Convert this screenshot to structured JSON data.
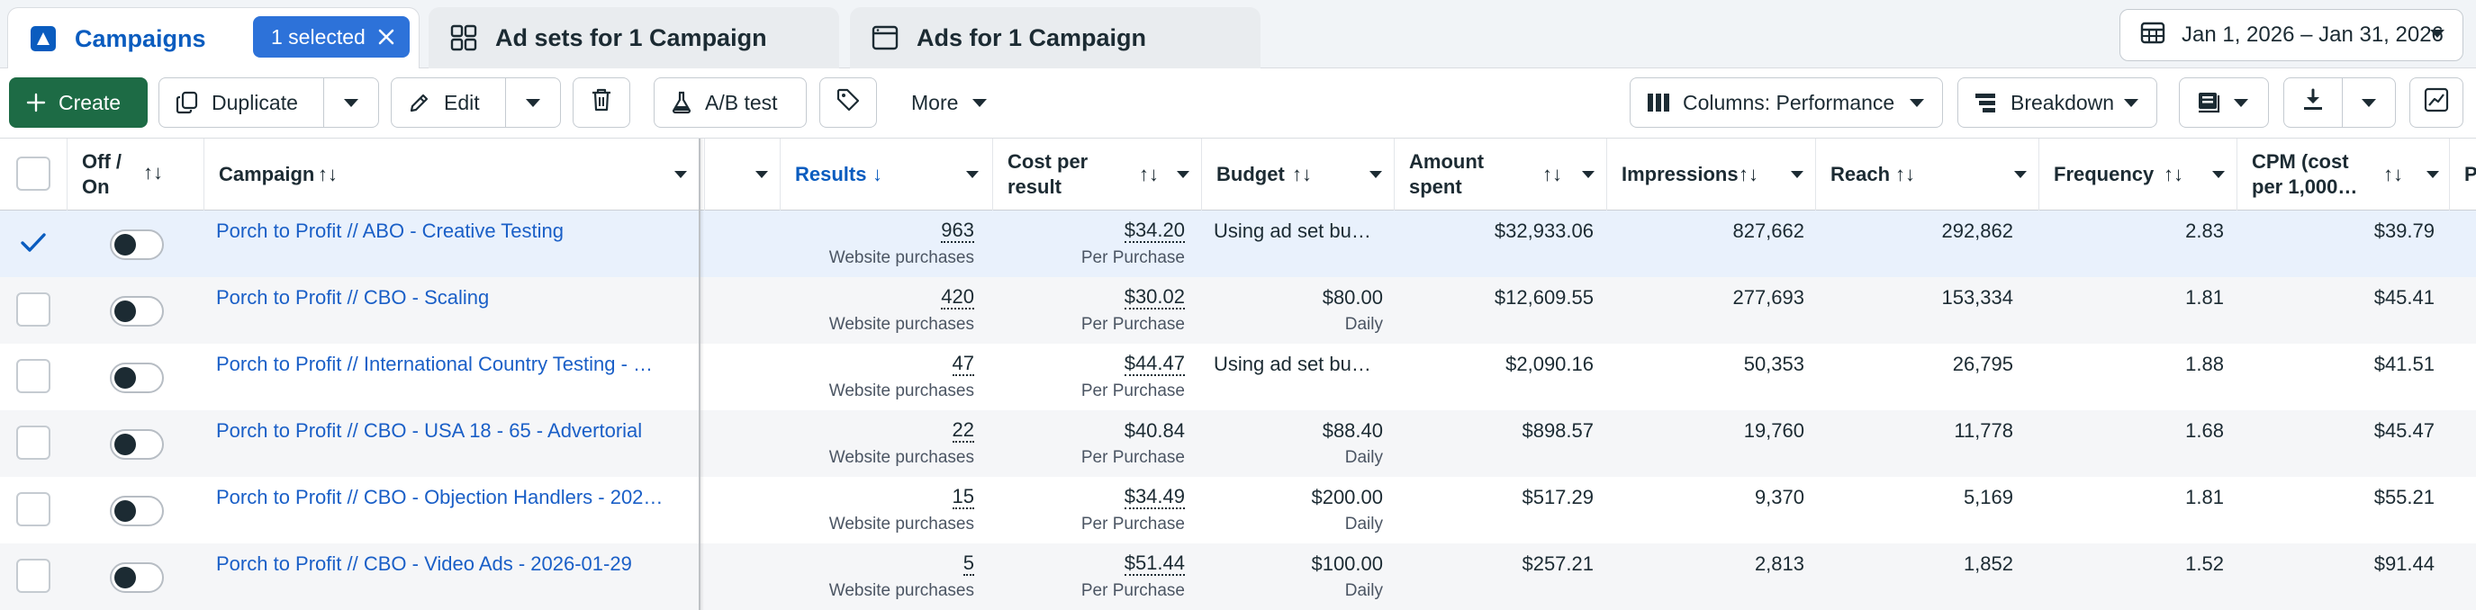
{
  "tabs": {
    "campaigns": "Campaigns",
    "selected_badge": "1 selected",
    "adsets": "Ad sets for 1 Campaign",
    "ads": "Ads for 1 Campaign"
  },
  "date_range": "Jan 1, 2026 – Jan 31, 2026",
  "toolbar": {
    "create": "Create",
    "duplicate": "Duplicate",
    "edit": "Edit",
    "ab_test": "A/B test",
    "more": "More",
    "columns": "Columns: Performance",
    "breakdown": "Breakdown"
  },
  "columns": {
    "off_on": "Off / On",
    "campaign": "Campaign",
    "results": "Results",
    "cost_per_result": "Cost per result",
    "budget": "Budget",
    "amount_spent": "Amount spent",
    "impressions": "Impressions",
    "reach": "Reach",
    "frequency": "Frequency",
    "cpm": "CPM (cost per 1,000…",
    "next": "P"
  },
  "rows": [
    {
      "name": "Porch to Profit // ABO - Creative Testing",
      "results": "963",
      "results_sub": "Website purchases",
      "cpr": "$34.20",
      "cpr_sub": "Per Purchase",
      "budget": "Using ad set bu…",
      "budget_sub": "",
      "spent": "$32,933.06",
      "impressions": "827,662",
      "reach": "292,862",
      "frequency": "2.83",
      "cpm": "$39.79",
      "selected": true
    },
    {
      "name": "Porch to Profit // CBO - Scaling",
      "results": "420",
      "results_sub": "Website purchases",
      "cpr": "$30.02",
      "cpr_sub": "Per Purchase",
      "budget": "$80.00",
      "budget_sub": "Daily",
      "spent": "$12,609.55",
      "impressions": "277,693",
      "reach": "153,334",
      "frequency": "1.81",
      "cpm": "$45.41",
      "selected": false
    },
    {
      "name": "Porch to Profit // International Country Testing - …",
      "results": "47",
      "results_sub": "Website purchases",
      "cpr": "$44.47",
      "cpr_sub": "Per Purchase",
      "budget": "Using ad set bu…",
      "budget_sub": "",
      "spent": "$2,090.16",
      "impressions": "50,353",
      "reach": "26,795",
      "frequency": "1.88",
      "cpm": "$41.51",
      "selected": false
    },
    {
      "name": "Porch to Profit // CBO - USA 18 - 65 - Advertorial",
      "results": "22",
      "results_sub": "Website purchases",
      "cpr": "$40.84",
      "cpr_sub": "Per Purchase",
      "budget": "$88.40",
      "budget_sub": "Daily",
      "spent": "$898.57",
      "impressions": "19,760",
      "reach": "11,778",
      "frequency": "1.68",
      "cpm": "$45.47",
      "selected": false
    },
    {
      "name": "Porch to Profit // CBO - Objection Handlers - 202…",
      "results": "15",
      "results_sub": "Website purchases",
      "cpr": "$34.49",
      "cpr_sub": "Per Purchase",
      "budget": "$200.00",
      "budget_sub": "Daily",
      "spent": "$517.29",
      "impressions": "9,370",
      "reach": "5,169",
      "frequency": "1.81",
      "cpm": "$55.21",
      "selected": false
    },
    {
      "name": "Porch to Profit // CBO - Video Ads - 2026-01-29",
      "results": "5",
      "results_sub": "Website purchases",
      "cpr": "$51.44",
      "cpr_sub": "Per Purchase",
      "budget": "$100.00",
      "budget_sub": "Daily",
      "spent": "$257.21",
      "impressions": "2,813",
      "reach": "1,852",
      "frequency": "1.52",
      "cpm": "$91.44",
      "selected": false
    }
  ],
  "icons": {
    "campaigns_tab": "campaign-flag-icon",
    "adsets_tab": "grid-icon",
    "ads_tab": "ad-window-icon",
    "calendar": "calendar-icon",
    "create": "plus-icon",
    "duplicate": "copy-icon",
    "edit": "pencil-icon",
    "delete": "trash-icon",
    "ab_test": "flask-icon",
    "tag": "tag-icon",
    "columns": "columns-icon",
    "breakdown": "breakdown-icon",
    "reports": "reports-icon",
    "export": "download-icon",
    "chart": "chart-icon"
  },
  "colors": {
    "accent": "#0a5cbf",
    "create_green": "#1d6b45",
    "selected_badge": "#2d72d9",
    "link": "#1a5fc7"
  }
}
